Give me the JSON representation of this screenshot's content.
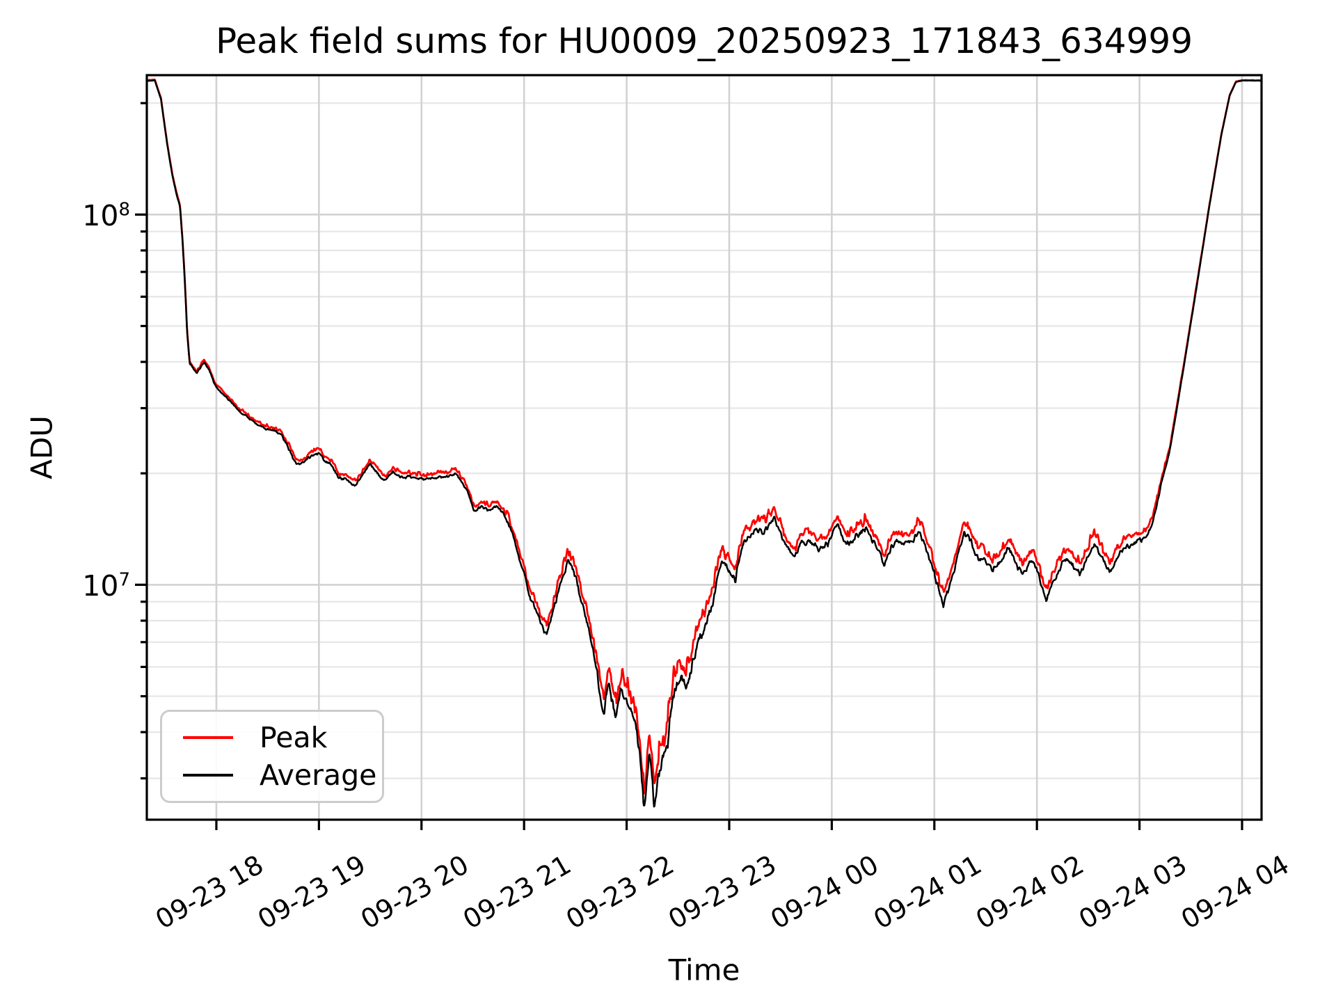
{
  "chart": {
    "title": "Peak field sums for HU0009_20250923_171843_634999",
    "xlabel": "Time",
    "ylabel": "ADU",
    "legend": [
      {
        "label": "Peak",
        "color": "#ff0000"
      },
      {
        "label": "Average",
        "color": "#000000"
      }
    ]
  },
  "colors": {
    "background": "#ffffff",
    "spine": "#000000",
    "grid_major": "#d2d2d2",
    "grid_minor": "#e6e6e6",
    "peak_line": "#ff0000",
    "average_line": "#000000"
  },
  "chart_data": {
    "type": "line",
    "title": "Peak field sums for HU0009_20250923_171843_634999",
    "xlabel": "Time",
    "ylabel": "ADU",
    "yscale": "log",
    "grid": true,
    "legend_position": "lower left",
    "x_unit": "hours since 2025-09-23 00:00 (24+ = 09-24)",
    "xlim_hours": [
      17.322,
      28.19
    ],
    "ylim": [
      2320000.0,
      238000000.0
    ],
    "x_ticks": [
      {
        "t": 18,
        "label": "09-23 18"
      },
      {
        "t": 19,
        "label": "09-23 19"
      },
      {
        "t": 20,
        "label": "09-23 20"
      },
      {
        "t": 21,
        "label": "09-23 21"
      },
      {
        "t": 22,
        "label": "09-23 22"
      },
      {
        "t": 23,
        "label": "09-23 23"
      },
      {
        "t": 24,
        "label": "09-24 00"
      },
      {
        "t": 25,
        "label": "09-24 01"
      },
      {
        "t": 26,
        "label": "09-24 02"
      },
      {
        "t": 27,
        "label": "09-24 03"
      },
      {
        "t": 28,
        "label": "09-24 04"
      }
    ],
    "y_major_ticks": [
      {
        "value": 10000000.0,
        "mantissa": "10",
        "exponent": "7"
      },
      {
        "value": 100000000.0,
        "mantissa": "10",
        "exponent": "8"
      }
    ],
    "y_minor_ticks": [
      3000000.0,
      4000000.0,
      5000000.0,
      6000000.0,
      7000000.0,
      8000000.0,
      9000000.0,
      20000000.0,
      30000000.0,
      40000000.0,
      50000000.0,
      60000000.0,
      70000000.0,
      80000000.0,
      90000000.0,
      200000000.0
    ],
    "series": [
      {
        "name": "Average",
        "color": "#000000",
        "points": [
          [
            17.322,
            230000000.0
          ],
          [
            17.4,
            230000000.0
          ],
          [
            17.46,
            205000000.0
          ],
          [
            17.52,
            155000000.0
          ],
          [
            17.57,
            128000000.0
          ],
          [
            17.61,
            114000000.0
          ],
          [
            17.645,
            105000000.0
          ],
          [
            17.67,
            85000000.0
          ],
          [
            17.695,
            64000000.0
          ],
          [
            17.715,
            48000000.0
          ],
          [
            17.74,
            39500000.0
          ],
          [
            17.77,
            38500000.0
          ],
          [
            17.81,
            37300000.0
          ],
          [
            17.88,
            40000000.0
          ],
          [
            17.93,
            38000000.0
          ],
          [
            17.98,
            35000000.0
          ],
          [
            18.07,
            32600000.0
          ],
          [
            18.17,
            30500000.0
          ],
          [
            18.27,
            28600000.0
          ],
          [
            18.41,
            27000000.0
          ],
          [
            18.52,
            26200000.0
          ],
          [
            18.64,
            25200000.0
          ],
          [
            18.78,
            21000000.0
          ],
          [
            18.9,
            22000000.0
          ],
          [
            19.0,
            22600000.0
          ],
          [
            19.1,
            21200000.0
          ],
          [
            19.2,
            19500000.0
          ],
          [
            19.36,
            18700000.0
          ],
          [
            19.5,
            21200000.0
          ],
          [
            19.58,
            20000000.0
          ],
          [
            19.64,
            19100000.0
          ],
          [
            19.72,
            20300000.0
          ],
          [
            19.82,
            19400000.0
          ],
          [
            19.95,
            19500000.0
          ],
          [
            20.1,
            19200000.0
          ],
          [
            20.25,
            19600000.0
          ],
          [
            20.33,
            20100000.0
          ],
          [
            20.44,
            18000000.0
          ],
          [
            20.51,
            15700000.0
          ],
          [
            20.58,
            16500000.0
          ],
          [
            20.66,
            15900000.0
          ],
          [
            20.73,
            16100000.0
          ],
          [
            20.84,
            14900000.0
          ],
          [
            20.9,
            13400000.0
          ],
          [
            21.03,
            10000000.0
          ],
          [
            21.12,
            8300000.0
          ],
          [
            21.22,
            7400000.0
          ],
          [
            21.31,
            9000000.0
          ],
          [
            21.43,
            11700000.0
          ],
          [
            21.51,
            10400000.0
          ],
          [
            21.61,
            7900000.0
          ],
          [
            21.7,
            5900000.0
          ],
          [
            21.78,
            4600000.0
          ],
          [
            21.83,
            5400000.0
          ],
          [
            21.89,
            4600000.0
          ],
          [
            21.95,
            5000000.0
          ],
          [
            22.02,
            4600000.0
          ],
          [
            22.09,
            4250000.0
          ],
          [
            22.13,
            3400000.0
          ],
          [
            22.17,
            2420000.0
          ],
          [
            22.22,
            3600000.0
          ],
          [
            22.27,
            2600000.0
          ],
          [
            22.33,
            3300000.0
          ],
          [
            22.4,
            3850000.0
          ],
          [
            22.47,
            5200000.0
          ],
          [
            22.54,
            5600000.0
          ],
          [
            22.6,
            5300000.0
          ],
          [
            22.66,
            6200000.0
          ],
          [
            22.73,
            7100000.0
          ],
          [
            22.79,
            8100000.0
          ],
          [
            22.84,
            9200000.0
          ],
          [
            22.89,
            10800000.0
          ],
          [
            22.94,
            11500000.0
          ],
          [
            23.0,
            11100000.0
          ],
          [
            23.06,
            10200000.0
          ],
          [
            23.14,
            13000000.0
          ],
          [
            23.26,
            13900000.0
          ],
          [
            23.36,
            14400000.0
          ],
          [
            23.44,
            15200000.0
          ],
          [
            23.52,
            13400000.0
          ],
          [
            23.64,
            11800000.0
          ],
          [
            23.71,
            12800000.0
          ],
          [
            23.79,
            13100000.0
          ],
          [
            23.87,
            12400000.0
          ],
          [
            23.96,
            13000000.0
          ],
          [
            24.06,
            14400000.0
          ],
          [
            24.14,
            13000000.0
          ],
          [
            24.22,
            13300000.0
          ],
          [
            24.33,
            14500000.0
          ],
          [
            24.43,
            12500000.0
          ],
          [
            24.51,
            11600000.0
          ],
          [
            24.63,
            13000000.0
          ],
          [
            24.73,
            12800000.0
          ],
          [
            24.84,
            14000000.0
          ],
          [
            24.96,
            11500000.0
          ],
          [
            25.09,
            8800000.0
          ],
          [
            25.18,
            10600000.0
          ],
          [
            25.29,
            13600000.0
          ],
          [
            25.4,
            12400000.0
          ],
          [
            25.56,
            10800000.0
          ],
          [
            25.71,
            12500000.0
          ],
          [
            25.86,
            10600000.0
          ],
          [
            25.96,
            11700000.0
          ],
          [
            26.09,
            9000000.0
          ],
          [
            26.18,
            10600000.0
          ],
          [
            26.29,
            12100000.0
          ],
          [
            26.43,
            10600000.0
          ],
          [
            26.56,
            13100000.0
          ],
          [
            26.71,
            11000000.0
          ],
          [
            26.84,
            12500000.0
          ],
          [
            26.93,
            13000000.0
          ],
          [
            27.02,
            13300000.0
          ],
          [
            27.08,
            13800000.0
          ],
          [
            27.13,
            15000000.0
          ],
          [
            27.18,
            17000000.0
          ],
          [
            27.24,
            20000000.0
          ],
          [
            27.3,
            23500000.0
          ],
          [
            27.42,
            37000000.0
          ],
          [
            27.55,
            62000000.0
          ],
          [
            27.68,
            105000000.0
          ],
          [
            27.8,
            165000000.0
          ],
          [
            27.88,
            210000000.0
          ],
          [
            27.94,
            228000000.0
          ],
          [
            27.99,
            230000000.0
          ],
          [
            28.19,
            230000000.0
          ]
        ]
      },
      {
        "name": "Peak",
        "color": "#ff0000",
        "ratio_to_average": [
          [
            17.322,
            1.004
          ],
          [
            18.0,
            1.012
          ],
          [
            18.5,
            1.018
          ],
          [
            19.0,
            1.022
          ],
          [
            20.0,
            1.022
          ],
          [
            20.9,
            1.03
          ],
          [
            21.4,
            1.05
          ],
          [
            21.9,
            1.08
          ],
          [
            22.2,
            1.1
          ],
          [
            22.6,
            1.11
          ],
          [
            23.0,
            1.06
          ],
          [
            23.5,
            1.05
          ],
          [
            24.5,
            1.055
          ],
          [
            25.5,
            1.06
          ],
          [
            26.5,
            1.06
          ],
          [
            27.0,
            1.05
          ],
          [
            27.25,
            1.025
          ],
          [
            27.45,
            1.012
          ],
          [
            27.7,
            1.005
          ],
          [
            28.0,
            1.002
          ],
          [
            28.19,
            1.002
          ]
        ]
      }
    ],
    "noise_model": {
      "samples": 2200,
      "amp_log10": [
        [
          17.322,
          0.0008
        ],
        [
          17.9,
          0.003
        ],
        [
          18.3,
          0.0045
        ],
        [
          19.0,
          0.006
        ],
        [
          20.4,
          0.006
        ],
        [
          20.9,
          0.009
        ],
        [
          21.4,
          0.014
        ],
        [
          21.9,
          0.022
        ],
        [
          22.35,
          0.034
        ],
        [
          22.75,
          0.024
        ],
        [
          23.1,
          0.014
        ],
        [
          24.0,
          0.012
        ],
        [
          25.0,
          0.014
        ],
        [
          26.0,
          0.013
        ],
        [
          26.9,
          0.011
        ],
        [
          27.15,
          0.007
        ],
        [
          27.35,
          0.0025
        ],
        [
          27.7,
          0.0008
        ],
        [
          28.19,
          0.0005
        ]
      ],
      "peak_spike_gain": 0.9
    }
  }
}
